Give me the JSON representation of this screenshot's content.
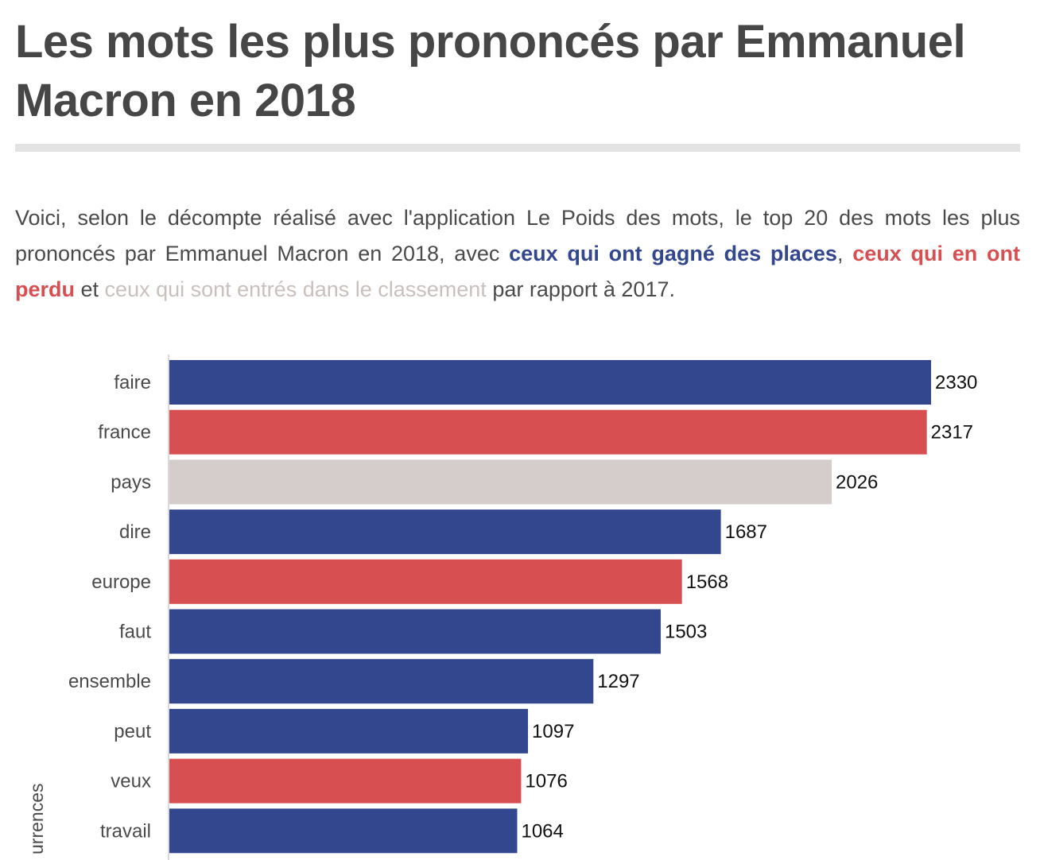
{
  "title": "Les mots les plus prononcés par Emmanuel Macron en 2018",
  "intro": {
    "part1": "Voici, selon le décompte réalisé avec l'application Le Poids des mots, le top 20 des mots les plus prononcés par Emmanuel Macron en 2018, avec ",
    "gained": "ceux qui ont gagné des places",
    "sep": ", ",
    "lost": "ceux qui en ont perdu",
    "part2": " et ",
    "new_entries": "ceux qui sont entrés dans le classement",
    "part3": " par rapport à 2017."
  },
  "colors": {
    "gained": "#33478e",
    "lost": "#d84f52",
    "new": "#d4cdcb",
    "text": "#4a4a4a",
    "axis": "#d9d9d9"
  },
  "chart_data": {
    "type": "bar",
    "orientation": "horizontal",
    "ylabel": "urrences",
    "categories": [
      "faire",
      "france",
      "pays",
      "dire",
      "europe",
      "faut",
      "ensemble",
      "peut",
      "veux",
      "travail"
    ],
    "values": [
      2330,
      2317,
      2026,
      1687,
      1568,
      1503,
      1297,
      1097,
      1076,
      1064
    ],
    "status": [
      "gained",
      "lost",
      "new",
      "gained",
      "lost",
      "gained",
      "gained",
      "gained",
      "lost",
      "gained"
    ],
    "xlim": [
      0,
      2330
    ],
    "data_labels": true,
    "grid": false,
    "legend": "none"
  }
}
